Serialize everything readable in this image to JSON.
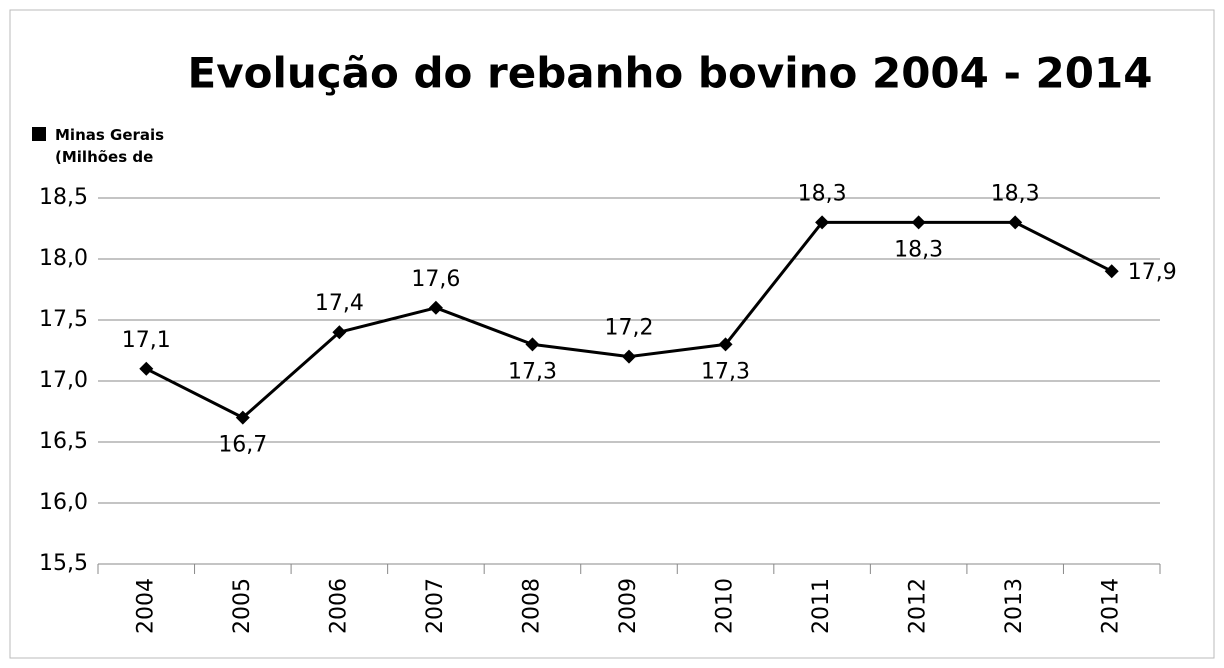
{
  "chart_data": {
    "type": "line",
    "title": "Evolução do rebanho bovino 2004 - 2014",
    "categories": [
      "2004",
      "2005",
      "2006",
      "2007",
      "2008",
      "2009",
      "2010",
      "2011",
      "2012",
      "2013",
      "2014"
    ],
    "series": [
      {
        "name": "Minas Gerais (Milhões de",
        "color": "#000000",
        "values": [
          17.1,
          16.7,
          17.4,
          17.6,
          17.3,
          17.2,
          17.3,
          18.3,
          18.3,
          18.3,
          17.9
        ],
        "value_labels": [
          "17,1",
          "16,7",
          "17,4",
          "17,6",
          "17,3",
          "17,2",
          "17,3",
          "18,3",
          "18,3",
          "18,3",
          "17,9"
        ]
      }
    ],
    "ylim": [
      15.5,
      18.5
    ],
    "yticks": [
      {
        "value": 15.5,
        "label": "15,5"
      },
      {
        "value": 16.0,
        "label": "16,0"
      },
      {
        "value": 16.5,
        "label": "16,5"
      },
      {
        "value": 17.0,
        "label": "17,0"
      },
      {
        "value": 17.5,
        "label": "17,5"
      },
      {
        "value": 18.0,
        "label": "18,0"
      },
      {
        "value": 18.5,
        "label": "18,5"
      }
    ],
    "grid": true,
    "legend": "top-left"
  }
}
